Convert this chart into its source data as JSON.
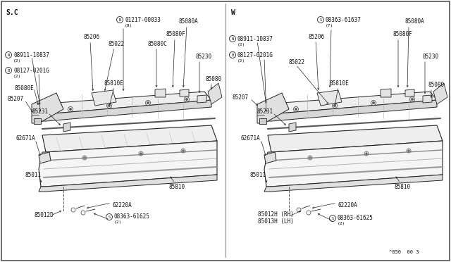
{
  "bg_color": "#ffffff",
  "line_color": "#222222",
  "label_color": "#111111",
  "title": "^850  00 3",
  "left_label": "S.C",
  "right_label": "W",
  "label_fs": 5.5,
  "small_fs": 4.5
}
